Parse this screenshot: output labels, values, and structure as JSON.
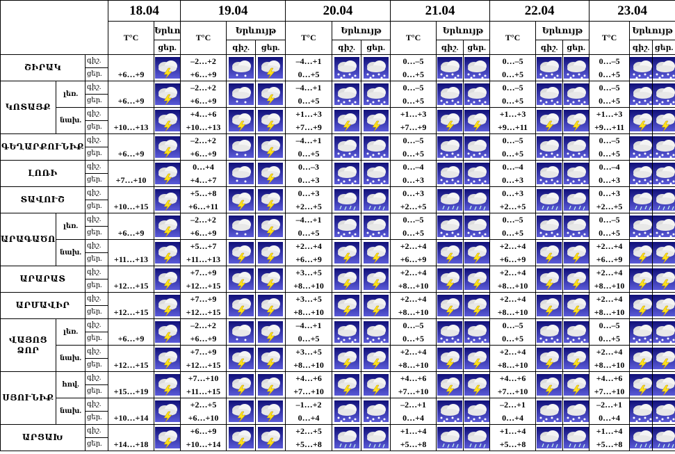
{
  "header": {
    "dates": [
      "18.04",
      "19.04",
      "20.04",
      "21.04",
      "22.04",
      "23.04"
    ],
    "temp": "T°C",
    "phenomenon": "Երևույթ",
    "night": "գիշ.",
    "day": "ցեր."
  },
  "regions": [
    {
      "name": "ՇԻՐԱԿ",
      "rows": [
        {
          "temps": [
            "+6…+9",
            "–2…+2",
            "+6…+9",
            "–4…+1",
            "0…+5",
            "0…–5",
            "0…+5",
            "0…–5",
            "0…+5",
            "0…–5",
            "0…+5"
          ]
        }
      ]
    },
    {
      "name": "ԿՈՏԱՅՔ",
      "rows": [
        {
          "sub": "լեռ.",
          "temps": [
            "+6…+9",
            "–2…+2",
            "+6…+9",
            "–4…+1",
            "0…+5",
            "0…–5",
            "0…+5",
            "0…–5",
            "0…+5",
            "0…–5",
            "0…+5"
          ]
        },
        {
          "sub": "նախ.",
          "temps": [
            "+10…+13",
            "+4…+6",
            "+10…+13",
            "+1…+3",
            "+7…+9",
            "+1…+3",
            "+7…+9",
            "+1…+3",
            "+9…+11",
            "+1…+3",
            "+9…+11"
          ]
        }
      ]
    },
    {
      "name": "ԳԵՂԱՐՔՈՒՆԻՔ",
      "rows": [
        {
          "temps": [
            "+6…+9",
            "–2…+2",
            "+6…+9",
            "–4…+1",
            "0…+5",
            "0…–5",
            "0…+5",
            "0…–5",
            "0…+5",
            "0…–5",
            "0…+5"
          ]
        }
      ]
    },
    {
      "name": "ԼՈՌԻ",
      "rows": [
        {
          "temps": [
            "+7…+10",
            "0…+4",
            "+4…+7",
            "0…–3",
            "0…+3",
            "0…–4",
            "0…+3",
            "0…–4",
            "0…+3",
            "0…–4",
            "0…+3"
          ]
        }
      ]
    },
    {
      "name": "ՏԱՎՈՒՇ",
      "rows": [
        {
          "temps": [
            "+10…+15",
            "+5…+8",
            "+6…+11",
            "0…+3",
            "+2…+5",
            "0…+3",
            "+2…+5",
            "0…+3",
            "+2…+5",
            "0…+3",
            "+2…+5"
          ]
        }
      ]
    },
    {
      "name": "ԱՐԱԳԱԾՈՏՆ",
      "rows": [
        {
          "sub": "լեռ.",
          "temps": [
            "+6…+9",
            "–2…+2",
            "+6…+9",
            "–4…+1",
            "0…+5",
            "0…–5",
            "0…+5",
            "0…–5",
            "0…+5",
            "0…–5",
            "0…+5"
          ]
        },
        {
          "sub": "նախ.",
          "temps": [
            "+11…+13",
            "+5…+7",
            "+11…+13",
            "+2…+4",
            "+6…+9",
            "+2…+4",
            "+6…+9",
            "+2…+4",
            "+6…+9",
            "+2…+4",
            "+6…+9"
          ]
        }
      ]
    },
    {
      "name": "ԱՐԱՐԱՏ",
      "rows": [
        {
          "temps": [
            "+12…+15",
            "+7…+9",
            "+12…+15",
            "+3…+5",
            "+8…+10",
            "+2…+4",
            "+8…+10",
            "+2…+4",
            "+8…+10",
            "+2…+4",
            "+8…+10"
          ]
        }
      ]
    },
    {
      "name": "ԱՐՄԱՎԻՐ",
      "rows": [
        {
          "temps": [
            "+12…+15",
            "+7…+9",
            "+12…+15",
            "+3…+5",
            "+8…+10",
            "+2…+4",
            "+8…+10",
            "+2…+4",
            "+8…+10",
            "+2…+4",
            "+8…+10"
          ]
        }
      ]
    },
    {
      "name": "ՎԱՅՈՑ ՁՈՐ",
      "rows": [
        {
          "sub": "լեռ.",
          "temps": [
            "+6…+9",
            "–2…+2",
            "+6…+9",
            "–4…+1",
            "0…+5",
            "0…–5",
            "0…+5",
            "0…–5",
            "0…+5",
            "0…–5",
            "0…+5"
          ]
        },
        {
          "sub": "նախ.",
          "temps": [
            "+12…+15",
            "+7…+9",
            "+12…+15",
            "+3…+5",
            "+8…+10",
            "+2…+4",
            "+8…+10",
            "+2…+4",
            "+8…+10",
            "+2…+4",
            "+8…+10"
          ]
        }
      ]
    },
    {
      "name": "ՍՅՈՒՆԻՔ",
      "rows": [
        {
          "sub": "հով.",
          "temps": [
            "+15…+19",
            "+7…+10",
            "+11…+15",
            "+4…+6",
            "+7…+10",
            "+4…+6",
            "+7…+10",
            "+4…+6",
            "+7…+10",
            "+4…+6",
            "+7…+10"
          ]
        },
        {
          "sub": "նախ.",
          "temps": [
            "+10…+14",
            "+2…+5",
            "+6…+10",
            "–1…+2",
            "0…+4",
            "–2…+1",
            "0…+4",
            "–2…+1",
            "0…+4",
            "–2…+1",
            "0…+4"
          ]
        }
      ]
    },
    {
      "name": "ԱՐՑԱԽ",
      "rows": [
        {
          "temps": [
            "+14…+18",
            "+6…+9",
            "+10…+14",
            "+2…+5",
            "+5…+8",
            "+1…+4",
            "+5…+8",
            "+1…+4",
            "+5…+8",
            "+1…+4",
            "+5…+8"
          ]
        }
      ]
    }
  ]
}
